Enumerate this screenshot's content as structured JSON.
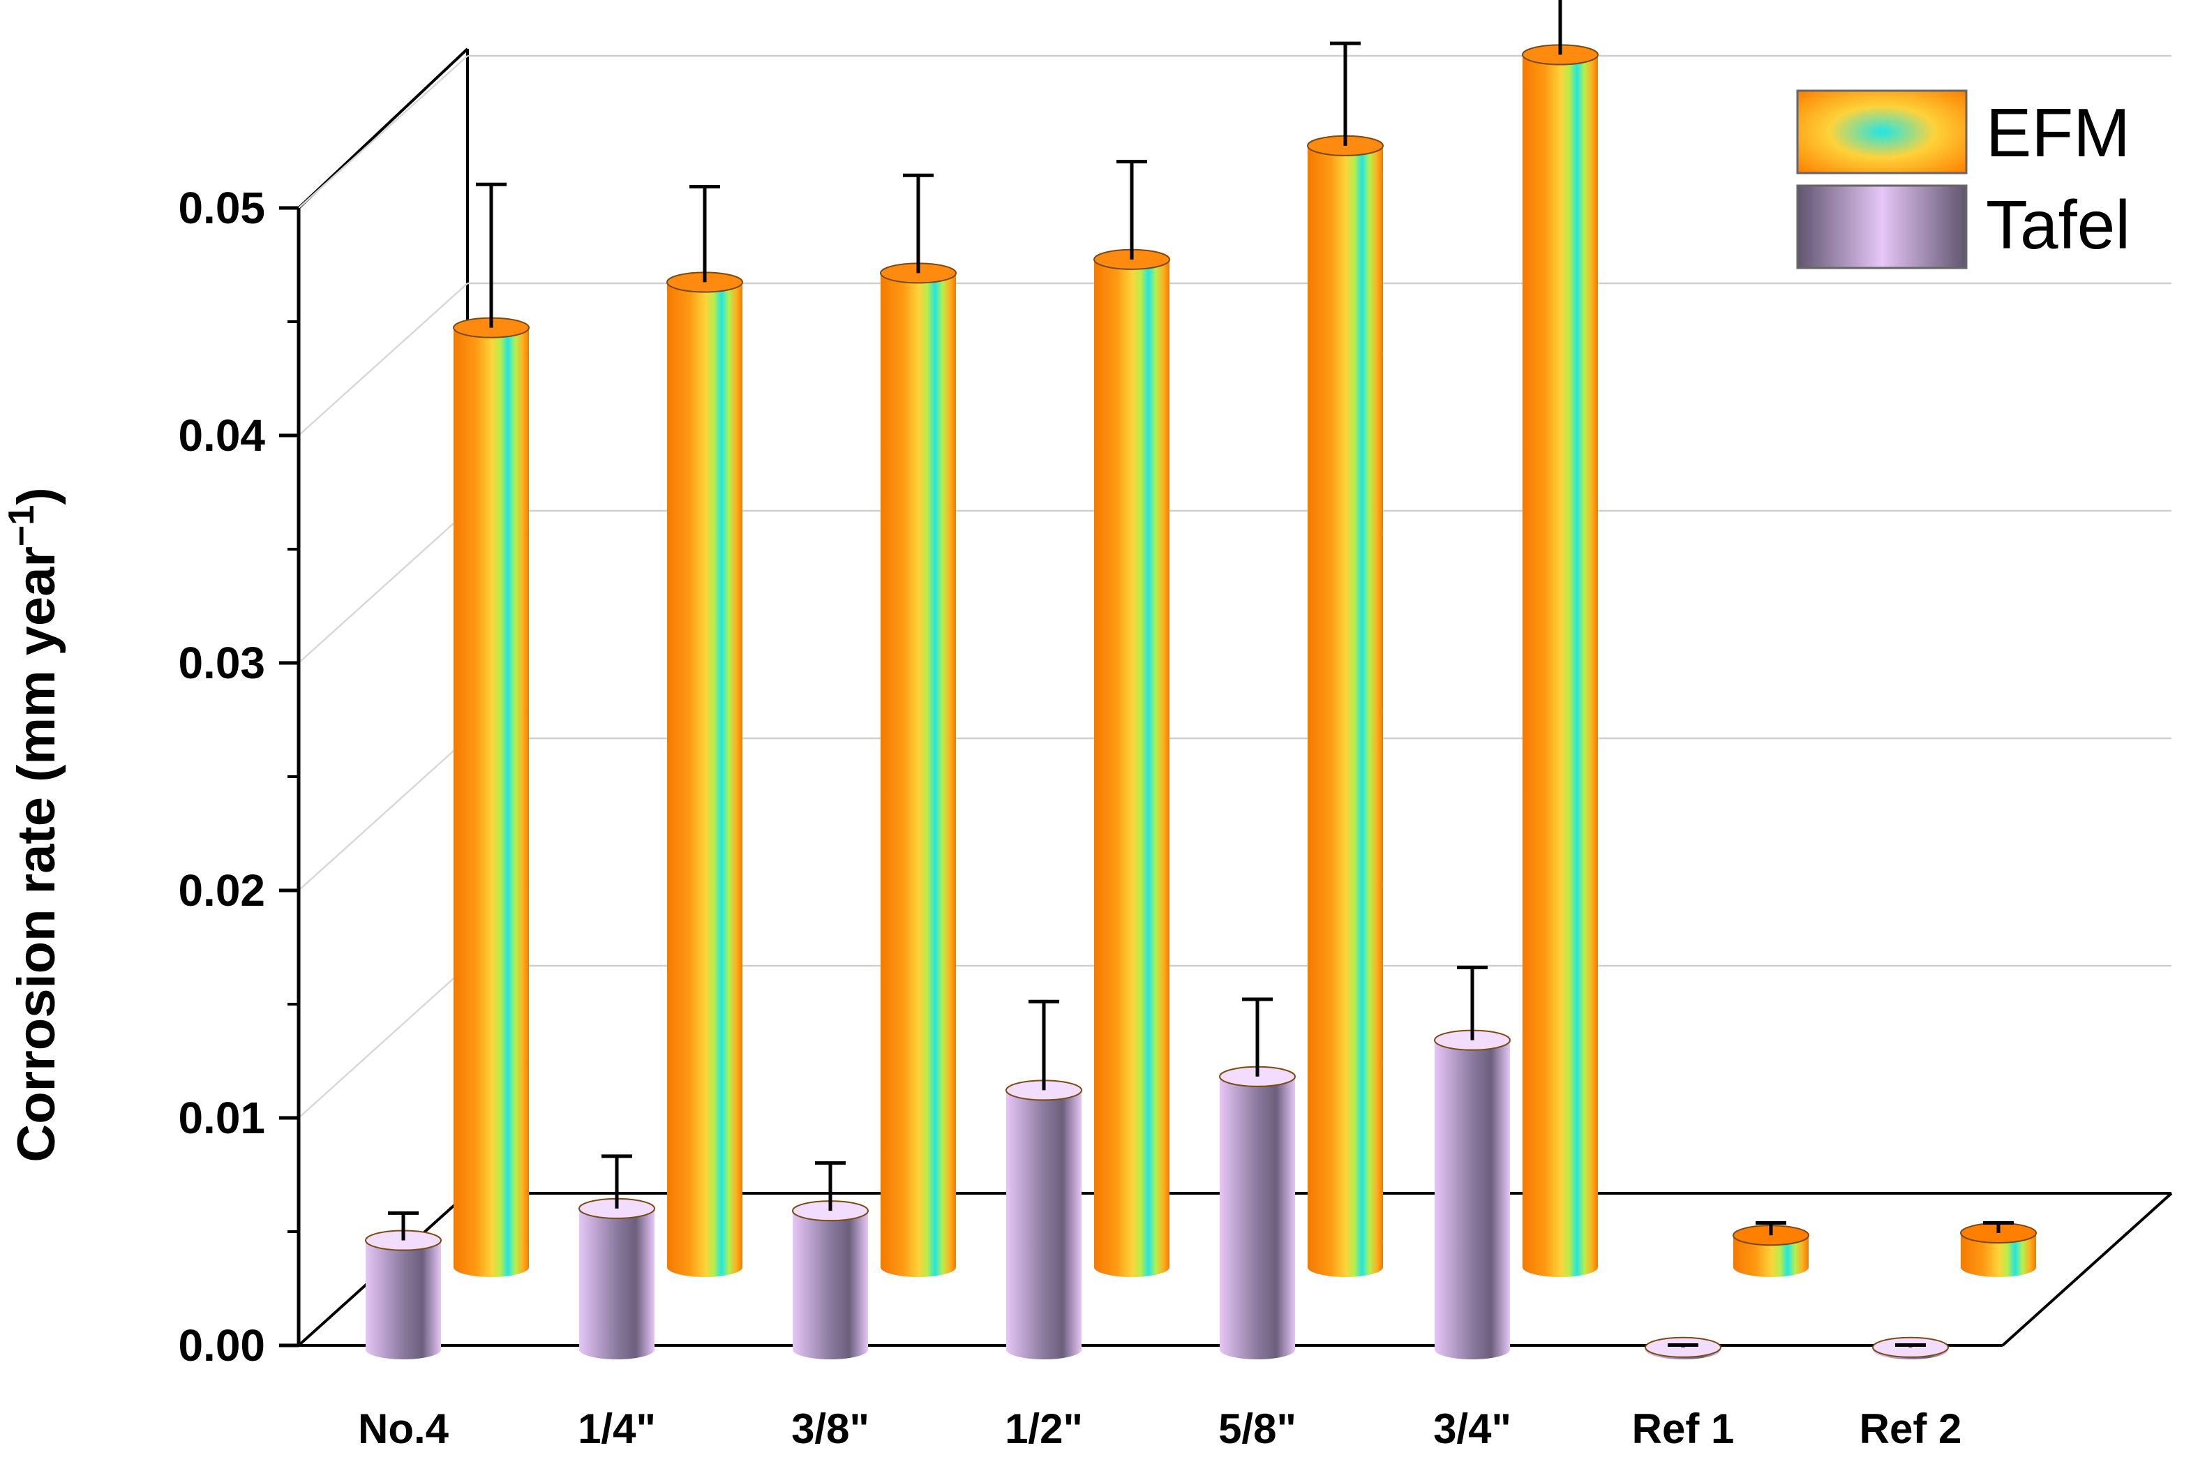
{
  "chart_data": {
    "type": "bar",
    "style": "3d-cylinder",
    "categories": [
      "No.4",
      "1/4\"",
      "3/8\"",
      "1/2\"",
      "5/8\"",
      "3/4\"",
      "Ref 1",
      "Ref 2"
    ],
    "series": [
      {
        "name": "EFM",
        "values": [
          0.0413,
          0.0433,
          0.0437,
          0.0443,
          0.0493,
          0.0533,
          0.0003,
          0.0004
        ],
        "errors": [
          0.0063,
          0.0042,
          0.0043,
          0.0043,
          0.0045,
          0.0043,
          0.0003,
          0.0002
        ],
        "colors": [
          "#ff7f00",
          "#ffd23a",
          "#20e6e6"
        ]
      },
      {
        "name": "Tafel",
        "values": [
          0.0048,
          0.0062,
          0.0061,
          0.0114,
          0.012,
          0.0136,
          0.0001,
          0.0001
        ],
        "errors": [
          0.0012,
          0.0023,
          0.0021,
          0.0039,
          0.0034,
          0.0032,
          0.0001,
          0.0001
        ],
        "colors": [
          "#e6c6f7",
          "#6b5f7d"
        ]
      }
    ],
    "ylabel": "Corrosion rate (mm year",
    "ylabel_sup": "−1",
    "ylabel_close": ")",
    "ylim": [
      0,
      0.05
    ],
    "yticks": [
      "0.00",
      "0.01",
      "0.02",
      "0.03",
      "0.04",
      "0.05"
    ],
    "ytick_values": [
      0,
      0.01,
      0.02,
      0.03,
      0.04,
      0.05
    ],
    "legend": [
      "EFM",
      "Tafel"
    ],
    "legend_position": "top-right",
    "grid": true
  }
}
